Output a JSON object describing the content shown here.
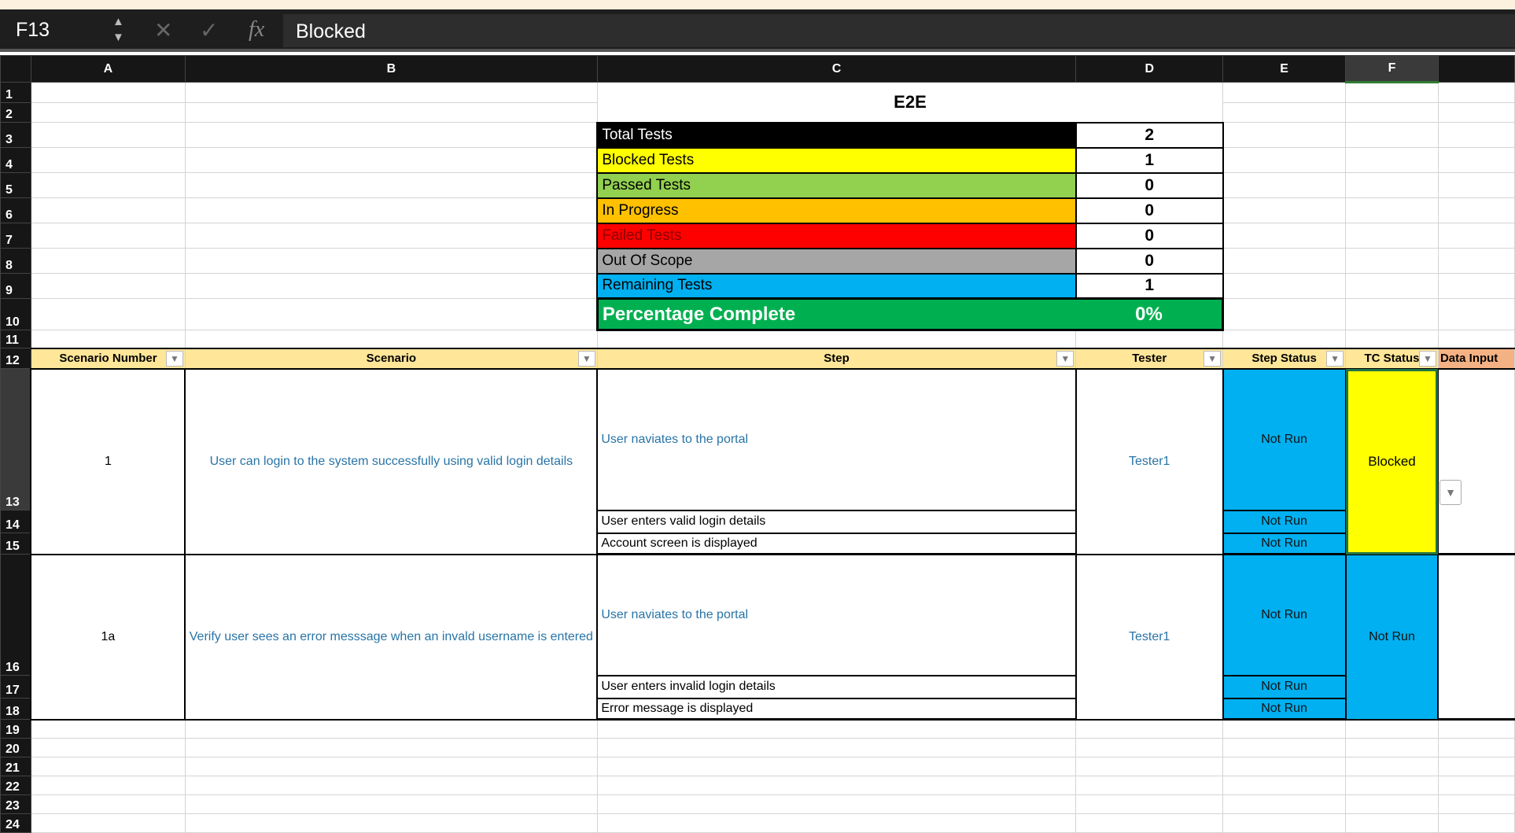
{
  "formula_bar": {
    "cell_ref": "F13",
    "content": "Blocked",
    "fx_label": "fx"
  },
  "columns": [
    "A",
    "B",
    "C",
    "D",
    "E",
    "F"
  ],
  "rows": [
    "1",
    "2",
    "3",
    "4",
    "5",
    "6",
    "7",
    "8",
    "9",
    "10",
    "11",
    "12",
    "13",
    "14",
    "15",
    "16",
    "17",
    "18",
    "19",
    "20",
    "21",
    "22",
    "23",
    "24"
  ],
  "title": "E2E",
  "summary": [
    {
      "label": "Total Tests",
      "value": "2",
      "color": "#000000",
      "text_color": "#ffffff"
    },
    {
      "label": "Blocked Tests",
      "value": "1",
      "color": "#ffff00",
      "text_color": "#000000"
    },
    {
      "label": "Passed Tests",
      "value": "0",
      "color": "#92d050",
      "text_color": "#000000"
    },
    {
      "label": "In Progress",
      "value": "0",
      "color": "#ffc000",
      "text_color": "#000000"
    },
    {
      "label": "Failed Tests",
      "value": "0",
      "color": "#ff0000",
      "text_color": "#8b0000"
    },
    {
      "label": "Out Of Scope",
      "value": "0",
      "color": "#a6a6a6",
      "text_color": "#000000"
    },
    {
      "label": "Remaining Tests",
      "value": "1",
      "color": "#00b0f0",
      "text_color": "#000000"
    }
  ],
  "percentage": {
    "label": "Percentage Complete",
    "value": "0%",
    "color": "#00b050"
  },
  "headers": [
    "Scenario Number",
    "Scenario",
    "Step",
    "Tester",
    "Step Status",
    "TC Status",
    "Data Input"
  ],
  "scenarios": [
    {
      "number": "1",
      "scenario": "User can login to the system successfully using valid login details",
      "tester": "Tester1",
      "tc_status": "Blocked",
      "steps": [
        {
          "step": "User naviates to the portal",
          "status": "Not Run"
        },
        {
          "step": "User enters valid login details",
          "status": "Not Run"
        },
        {
          "step": "Account screen is displayed",
          "status": "Not Run"
        }
      ]
    },
    {
      "number": "1a",
      "scenario": "Verify user sees an error messsage when an invald username is entered",
      "tester": "Tester1",
      "tc_status": "Not Run",
      "steps": [
        {
          "step": "User naviates to the portal",
          "status": "Not Run"
        },
        {
          "step": "User enters invalid login details",
          "status": "Not Run"
        },
        {
          "step": "Error message is displayed",
          "status": "Not Run"
        }
      ]
    }
  ]
}
